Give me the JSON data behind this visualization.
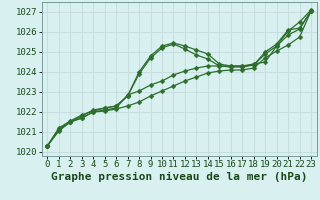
{
  "background_color": "#d8f0f0",
  "grid_color": "#c8dede",
  "line_color": "#2d6e2d",
  "title": "Graphe pression niveau de la mer (hPa)",
  "xlim": [
    -0.5,
    23.5
  ],
  "ylim": [
    1019.8,
    1027.5
  ],
  "yticks": [
    1020,
    1021,
    1022,
    1023,
    1024,
    1025,
    1026,
    1027
  ],
  "xticks": [
    0,
    1,
    2,
    3,
    4,
    5,
    6,
    7,
    8,
    9,
    10,
    11,
    12,
    13,
    14,
    15,
    16,
    17,
    18,
    19,
    20,
    21,
    22,
    23
  ],
  "series": [
    {
      "x": [
        0,
        1,
        2,
        3,
        4,
        5,
        6,
        7,
        8,
        9,
        10,
        11,
        12,
        13,
        14,
        15,
        16,
        17,
        18,
        19,
        20,
        21,
        22,
        23
      ],
      "y": [
        1020.3,
        1021.2,
        1021.55,
        1021.85,
        1022.05,
        1022.2,
        1022.3,
        1022.8,
        1024.0,
        1024.8,
        1025.3,
        1025.45,
        1025.3,
        1025.1,
        1024.9,
        1024.4,
        1024.3,
        1024.3,
        1024.4,
        1024.5,
        1025.3,
        1026.05,
        1026.5,
        1027.1
      ]
    },
    {
      "x": [
        0,
        1,
        2,
        3,
        4,
        5,
        6,
        7,
        8,
        9,
        10,
        11,
        12,
        13,
        14,
        15,
        16,
        17,
        18,
        19,
        20,
        21,
        22,
        23
      ],
      "y": [
        1020.3,
        1021.15,
        1021.5,
        1021.8,
        1022.1,
        1022.2,
        1022.3,
        1022.8,
        1023.9,
        1024.7,
        1025.2,
        1025.4,
        1025.15,
        1024.85,
        1024.65,
        1024.3,
        1024.25,
        1024.25,
        1024.35,
        1025.0,
        1025.4,
        1026.1,
        1026.2,
        1027.05
      ]
    },
    {
      "x": [
        0,
        1,
        2,
        3,
        4,
        5,
        6,
        7,
        8,
        9,
        10,
        11,
        12,
        13,
        14,
        15,
        16,
        17,
        18,
        19,
        20,
        21,
        22,
        23
      ],
      "y": [
        1020.3,
        1021.1,
        1021.5,
        1021.7,
        1022.0,
        1022.1,
        1022.2,
        1022.85,
        1023.05,
        1023.35,
        1023.55,
        1023.85,
        1024.05,
        1024.2,
        1024.3,
        1024.3,
        1024.3,
        1024.3,
        1024.35,
        1024.9,
        1025.3,
        1025.85,
        1026.15,
        1027.05
      ]
    },
    {
      "x": [
        0,
        1,
        2,
        3,
        4,
        5,
        6,
        7,
        8,
        9,
        10,
        11,
        12,
        13,
        14,
        15,
        16,
        17,
        18,
        19,
        20,
        21,
        22,
        23
      ],
      "y": [
        1020.3,
        1021.05,
        1021.5,
        1021.7,
        1022.0,
        1022.05,
        1022.15,
        1022.3,
        1022.5,
        1022.8,
        1023.05,
        1023.3,
        1023.55,
        1023.75,
        1023.95,
        1024.05,
        1024.1,
        1024.1,
        1024.2,
        1024.7,
        1025.05,
        1025.35,
        1025.75,
        1027.05
      ]
    }
  ],
  "marker": "D",
  "marker_size": 2.5,
  "linewidth": 0.9,
  "title_fontsize": 8,
  "tick_fontsize": 6.5
}
